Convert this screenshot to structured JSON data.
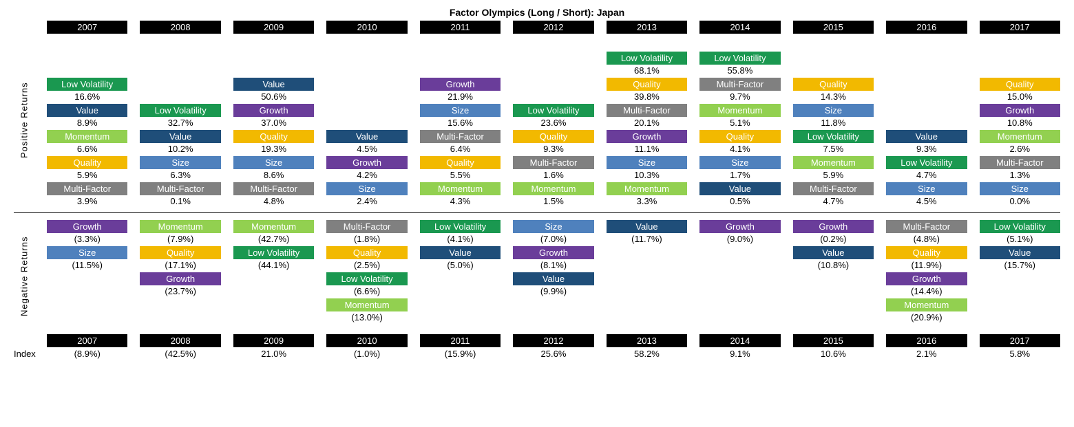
{
  "title": "Factor Olympics (Long / Short): Japan",
  "years": [
    "2007",
    "2008",
    "2009",
    "2010",
    "2011",
    "2012",
    "2013",
    "2014",
    "2015",
    "2016",
    "2017"
  ],
  "section_labels": {
    "positive": "Positive  Returns",
    "negative": "Negative  Returns"
  },
  "index_label": "Index",
  "factor_colors": {
    "Low Volatility": "#1a9850",
    "Value": "#1f4e79",
    "Momentum": "#92d050",
    "Quality": "#f2b900",
    "Multi-Factor": "#808080",
    "Growth": "#6a3d9a",
    "Size": "#4f81bd"
  },
  "positive_rows": 6,
  "negative_rows": 4,
  "positive": {
    "2007": [
      {
        "factor": "Low Volatility",
        "value": "16.6%"
      },
      {
        "factor": "Value",
        "value": "8.9%"
      },
      {
        "factor": "Momentum",
        "value": "6.6%"
      },
      {
        "factor": "Quality",
        "value": "5.9%"
      },
      {
        "factor": "Multi-Factor",
        "value": "3.9%"
      }
    ],
    "2008": [
      {
        "factor": "Low Volatility",
        "value": "32.7%"
      },
      {
        "factor": "Value",
        "value": "10.2%"
      },
      {
        "factor": "Size",
        "value": "6.3%"
      },
      {
        "factor": "Multi-Factor",
        "value": "0.1%"
      }
    ],
    "2009": [
      {
        "factor": "Value",
        "value": "50.6%"
      },
      {
        "factor": "Growth",
        "value": "37.0%"
      },
      {
        "factor": "Quality",
        "value": "19.3%"
      },
      {
        "factor": "Size",
        "value": "8.6%"
      },
      {
        "factor": "Multi-Factor",
        "value": "4.8%"
      }
    ],
    "2010": [
      {
        "factor": "Value",
        "value": "4.5%"
      },
      {
        "factor": "Growth",
        "value": "4.2%"
      },
      {
        "factor": "Size",
        "value": "2.4%"
      }
    ],
    "2011": [
      {
        "factor": "Growth",
        "value": "21.9%"
      },
      {
        "factor": "Size",
        "value": "15.6%"
      },
      {
        "factor": "Multi-Factor",
        "value": "6.4%"
      },
      {
        "factor": "Quality",
        "value": "5.5%"
      },
      {
        "factor": "Momentum",
        "value": "4.3%"
      }
    ],
    "2012": [
      {
        "factor": "Low Volatility",
        "value": "23.6%"
      },
      {
        "factor": "Quality",
        "value": "9.3%"
      },
      {
        "factor": "Multi-Factor",
        "value": "1.6%"
      },
      {
        "factor": "Momentum",
        "value": "1.5%"
      }
    ],
    "2013": [
      {
        "factor": "Low Volatility",
        "value": "68.1%"
      },
      {
        "factor": "Quality",
        "value": "39.8%"
      },
      {
        "factor": "Multi-Factor",
        "value": "20.1%"
      },
      {
        "factor": "Growth",
        "value": "11.1%"
      },
      {
        "factor": "Size",
        "value": "10.3%"
      },
      {
        "factor": "Momentum",
        "value": "3.3%"
      }
    ],
    "2014": [
      {
        "factor": "Low Volatility",
        "value": "55.8%"
      },
      {
        "factor": "Multi-Factor",
        "value": "9.7%"
      },
      {
        "factor": "Momentum",
        "value": "5.1%"
      },
      {
        "factor": "Quality",
        "value": "4.1%"
      },
      {
        "factor": "Size",
        "value": "1.7%"
      },
      {
        "factor": "Value",
        "value": "0.5%"
      }
    ],
    "2015": [
      {
        "factor": "Quality",
        "value": "14.3%"
      },
      {
        "factor": "Size",
        "value": "11.8%"
      },
      {
        "factor": "Low Volatility",
        "value": "7.5%"
      },
      {
        "factor": "Momentum",
        "value": "5.9%"
      },
      {
        "factor": "Multi-Factor",
        "value": "4.7%"
      }
    ],
    "2016": [
      {
        "factor": "Value",
        "value": "9.3%"
      },
      {
        "factor": "Low Volatility",
        "value": "4.7%"
      },
      {
        "factor": "Size",
        "value": "4.5%"
      }
    ],
    "2017": [
      {
        "factor": "Quality",
        "value": "15.0%"
      },
      {
        "factor": "Growth",
        "value": "10.8%"
      },
      {
        "factor": "Momentum",
        "value": "2.6%"
      },
      {
        "factor": "Multi-Factor",
        "value": "1.3%"
      },
      {
        "factor": "Size",
        "value": "0.0%"
      }
    ]
  },
  "negative": {
    "2007": [
      {
        "factor": "Growth",
        "value": "(3.3%)"
      },
      {
        "factor": "Size",
        "value": "(11.5%)"
      }
    ],
    "2008": [
      {
        "factor": "Momentum",
        "value": "(7.9%)"
      },
      {
        "factor": "Quality",
        "value": "(17.1%)"
      },
      {
        "factor": "Growth",
        "value": "(23.7%)"
      }
    ],
    "2009": [
      {
        "factor": "Momentum",
        "value": "(42.7%)"
      },
      {
        "factor": "Low Volatility",
        "value": "(44.1%)"
      }
    ],
    "2010": [
      {
        "factor": "Multi-Factor",
        "value": "(1.8%)"
      },
      {
        "factor": "Quality",
        "value": "(2.5%)"
      },
      {
        "factor": "Low Volatility",
        "value": "(6.6%)"
      },
      {
        "factor": "Momentum",
        "value": "(13.0%)"
      }
    ],
    "2011": [
      {
        "factor": "Low Volatility",
        "value": "(4.1%)"
      },
      {
        "factor": "Value",
        "value": "(5.0%)"
      }
    ],
    "2012": [
      {
        "factor": "Size",
        "value": "(7.0%)"
      },
      {
        "factor": "Growth",
        "value": "(8.1%)"
      },
      {
        "factor": "Value",
        "value": "(9.9%)"
      }
    ],
    "2013": [
      {
        "factor": "Value",
        "value": "(11.7%)"
      }
    ],
    "2014": [
      {
        "factor": "Growth",
        "value": "(9.0%)"
      }
    ],
    "2015": [
      {
        "factor": "Growth",
        "value": "(0.2%)"
      },
      {
        "factor": "Value",
        "value": "(10.8%)"
      }
    ],
    "2016": [
      {
        "factor": "Multi-Factor",
        "value": "(4.8%)"
      },
      {
        "factor": "Quality",
        "value": "(11.9%)"
      },
      {
        "factor": "Growth",
        "value": "(14.4%)"
      },
      {
        "factor": "Momentum",
        "value": "(20.9%)"
      }
    ],
    "2017": [
      {
        "factor": "Low Volatility",
        "value": "(5.1%)"
      },
      {
        "factor": "Value",
        "value": "(15.7%)"
      }
    ]
  },
  "index": {
    "2007": "(8.9%)",
    "2008": "(42.5%)",
    "2009": "21.0%",
    "2010": "(1.0%)",
    "2011": "(15.9%)",
    "2012": "25.6%",
    "2013": "58.2%",
    "2014": "9.1%",
    "2015": "10.6%",
    "2016": "2.1%",
    "2017": "5.8%"
  }
}
